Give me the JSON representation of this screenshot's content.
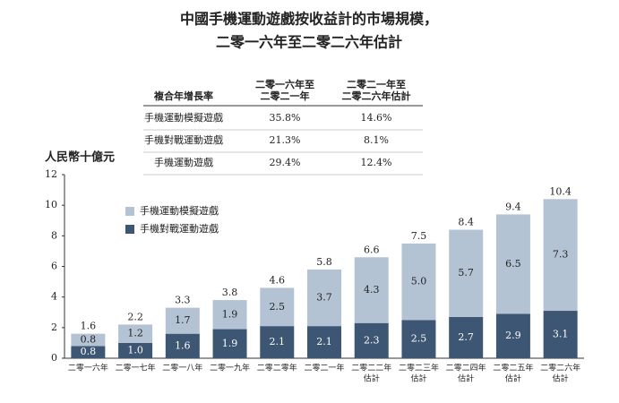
{
  "title": "中國手機運動遊戲按收益計的市場規模，",
  "subtitle": "二零一六年至二零二六年估計",
  "table": {
    "header": [
      [
        "複合年增長率"
      ],
      [
        "二零一六年至",
        "二零二一年"
      ],
      [
        "二零二一年至",
        "二零二六年估計"
      ]
    ],
    "rows": [
      [
        "手機運動模擬遊戲",
        "35.8%",
        "14.6%"
      ],
      [
        "手機對戰運動遊戲",
        "21.3%",
        "8.1%"
      ],
      [
        "手機運動遊戲",
        "29.4%",
        "12.4%"
      ]
    ]
  },
  "chart_data": {
    "type": "stacked_bar",
    "y_label": "人民幣十億元",
    "categories": [
      [
        "二零一六年"
      ],
      [
        "二零一七年"
      ],
      [
        "二零一八年"
      ],
      [
        "二零一九年"
      ],
      [
        "二零二零年"
      ],
      [
        "二零二一年"
      ],
      [
        "二零二二年",
        "估計"
      ],
      [
        "二零二三年",
        "估計"
      ],
      [
        "二零二四年",
        "估計"
      ],
      [
        "二零二五年",
        "估計"
      ],
      [
        "二零二六年",
        "估計"
      ]
    ],
    "series": [
      {
        "name": "手機對戰運動遊戲",
        "color": "#3d5673",
        "label_color": "#ffffff",
        "values": [
          0.8,
          1.0,
          1.6,
          1.9,
          2.1,
          2.1,
          2.3,
          2.5,
          2.7,
          2.9,
          3.1
        ],
        "value_labels": [
          "0.8",
          "1.0",
          "1.6",
          "1.9",
          "2.1",
          "2.1",
          "2.3",
          "2.5",
          "2.7",
          "2.9",
          "3.1"
        ]
      },
      {
        "name": "手機運動模擬遊戲",
        "color": "#b4c3d3",
        "label_color": "#222222",
        "values": [
          0.8,
          1.2,
          1.7,
          1.9,
          2.5,
          3.7,
          4.3,
          5.0,
          5.7,
          6.5,
          7.3
        ],
        "value_labels": [
          "0.8",
          "1.2",
          "1.7",
          "1.9",
          "2.5",
          "3.7",
          "4.3",
          "5.0",
          "5.7",
          "6.5",
          "7.3"
        ]
      }
    ],
    "totals": [
      1.6,
      2.2,
      3.3,
      3.8,
      4.6,
      5.8,
      6.6,
      7.5,
      8.4,
      9.4,
      10.4
    ],
    "ylim": [
      0,
      12
    ],
    "yticks": [
      0,
      2,
      4,
      6,
      8,
      10,
      12
    ],
    "grid": false,
    "legend": "top-left"
  }
}
